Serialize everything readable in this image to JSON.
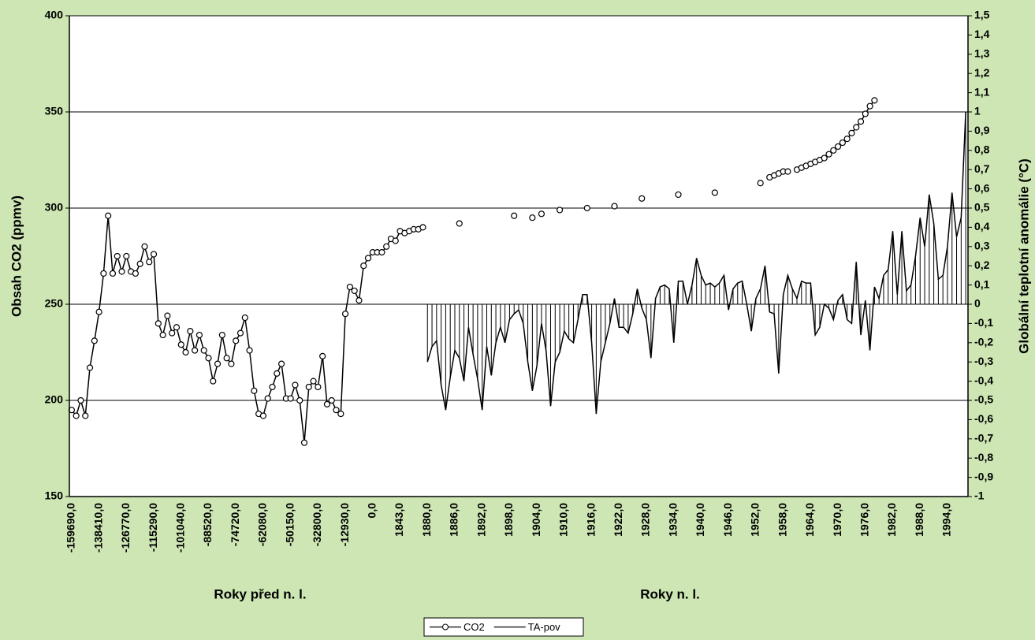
{
  "chart_data": {
    "type": "line",
    "categories": [
      "-159690,0",
      null,
      null,
      null,
      null,
      null,
      "-138410,0",
      null,
      null,
      null,
      null,
      null,
      "-126770,0",
      null,
      null,
      null,
      null,
      null,
      "-115290,0",
      null,
      null,
      null,
      null,
      null,
      "-101040,0",
      null,
      null,
      null,
      null,
      null,
      "-88520,0",
      null,
      null,
      null,
      null,
      null,
      "-74720,0",
      null,
      null,
      null,
      null,
      null,
      "-62080,0",
      null,
      null,
      null,
      null,
      null,
      "-50150,0",
      null,
      null,
      null,
      null,
      null,
      "-32800,0",
      null,
      null,
      null,
      null,
      null,
      "-12930,0",
      null,
      null,
      null,
      null,
      null,
      "0,0",
      null,
      null,
      null,
      null,
      null,
      "1843,0",
      null,
      null,
      null,
      null,
      null,
      "1880,0",
      null,
      null,
      null,
      null,
      null,
      "1886,0",
      null,
      null,
      null,
      null,
      null,
      "1892,0",
      null,
      null,
      null,
      null,
      null,
      "1898,0",
      null,
      null,
      null,
      null,
      null,
      "1904,0",
      null,
      null,
      null,
      null,
      null,
      "1910,0",
      null,
      null,
      null,
      null,
      null,
      "1916,0",
      null,
      null,
      null,
      null,
      null,
      "1922,0",
      null,
      null,
      null,
      null,
      null,
      "1928,0",
      null,
      null,
      null,
      null,
      null,
      "1934,0",
      null,
      null,
      null,
      null,
      null,
      "1940,0",
      null,
      null,
      null,
      null,
      null,
      "1946,0",
      null,
      null,
      null,
      null,
      null,
      "1952,0",
      null,
      null,
      null,
      null,
      null,
      "1958,0",
      null,
      null,
      null,
      null,
      null,
      "1964,0",
      null,
      null,
      null,
      null,
      null,
      "1970,0",
      null,
      null,
      null,
      null,
      null,
      "1976,0",
      null,
      null,
      null,
      null,
      null,
      "1982,0",
      null,
      null,
      null,
      null,
      null,
      "1988,0",
      null,
      null,
      null,
      null,
      null,
      "1994,0",
      null,
      null,
      null,
      null
    ],
    "series": [
      {
        "name": "CO2",
        "color": "#000000",
        "marker": "circle",
        "values": [
          195,
          192,
          200,
          192,
          217,
          231,
          246,
          266,
          296,
          266,
          275,
          267,
          275,
          267,
          266,
          271,
          280,
          272,
          276,
          240,
          234,
          244,
          235,
          238,
          229,
          225,
          236,
          226,
          234,
          226,
          222,
          210,
          219,
          234,
          222,
          219,
          231,
          235,
          243,
          226,
          205,
          193,
          192,
          201,
          207,
          214,
          219,
          201,
          201,
          208,
          200,
          178,
          207,
          210,
          207,
          223,
          198,
          200,
          195,
          193,
          245,
          259,
          257,
          252,
          270,
          274,
          277,
          277,
          277,
          280,
          284,
          283,
          288,
          287,
          288,
          289,
          289,
          290,
          null,
          null,
          null,
          null,
          null,
          null,
          null,
          292,
          null,
          null,
          null,
          null,
          null,
          null,
          null,
          null,
          null,
          null,
          null,
          296,
          null,
          null,
          null,
          295,
          null,
          297,
          null,
          null,
          null,
          299,
          null,
          null,
          null,
          null,
          null,
          300,
          null,
          null,
          null,
          null,
          null,
          301,
          null,
          null,
          null,
          null,
          null,
          305,
          null,
          null,
          null,
          null,
          null,
          null,
          null,
          307,
          null,
          null,
          null,
          null,
          null,
          null,
          null,
          308,
          null,
          null,
          null,
          null,
          null,
          null,
          null,
          null,
          null,
          313,
          null,
          316,
          317,
          318,
          319,
          319,
          null,
          320,
          321,
          322,
          323,
          324,
          325,
          326,
          328,
          330,
          332,
          334,
          336,
          339,
          342,
          345,
          349,
          353,
          356,
          null,
          null,
          null,
          null,
          null,
          null,
          null,
          null,
          null,
          null,
          null,
          null,
          null,
          null,
          null,
          null,
          null,
          null,
          null,
          null
        ]
      },
      {
        "name": "TA-pov",
        "color": "#000000",
        "axis": "y2",
        "drop_lines": true,
        "values": [
          null,
          null,
          null,
          null,
          null,
          null,
          null,
          null,
          null,
          null,
          null,
          null,
          null,
          null,
          null,
          null,
          null,
          null,
          null,
          null,
          null,
          null,
          null,
          null,
          null,
          null,
          null,
          null,
          null,
          null,
          null,
          null,
          null,
          null,
          null,
          null,
          null,
          null,
          null,
          null,
          null,
          null,
          null,
          null,
          null,
          null,
          null,
          null,
          null,
          null,
          null,
          null,
          null,
          null,
          null,
          null,
          null,
          null,
          null,
          null,
          null,
          null,
          null,
          null,
          null,
          null,
          null,
          null,
          null,
          null,
          null,
          null,
          null,
          null,
          null,
          null,
          null,
          null,
          -0.3,
          -0.22,
          -0.19,
          -0.42,
          -0.55,
          -0.38,
          -0.24,
          -0.28,
          -0.4,
          -0.12,
          -0.26,
          -0.39,
          -0.55,
          -0.22,
          -0.37,
          -0.2,
          -0.12,
          -0.2,
          -0.08,
          -0.05,
          -0.03,
          -0.1,
          -0.3,
          -0.45,
          -0.32,
          -0.1,
          -0.24,
          -0.53,
          -0.3,
          -0.25,
          -0.14,
          -0.18,
          -0.2,
          -0.08,
          0.05,
          0.05,
          -0.2,
          -0.57,
          -0.3,
          -0.2,
          -0.1,
          0.03,
          -0.12,
          -0.12,
          -0.15,
          -0.05,
          0.08,
          -0.02,
          -0.08,
          -0.28,
          0.03,
          0.09,
          0.1,
          0.08,
          -0.2,
          0.12,
          0.12,
          0.0,
          0.1,
          0.24,
          0.15,
          0.1,
          0.11,
          0.09,
          0.11,
          0.15,
          -0.03,
          0.08,
          0.11,
          0.12,
          0.0,
          -0.14,
          0.03,
          0.08,
          0.2,
          -0.04,
          -0.05,
          -0.36,
          0.05,
          0.15,
          0.08,
          0.03,
          0.12,
          0.11,
          0.11,
          -0.16,
          -0.12,
          0.0,
          -0.02,
          -0.08,
          0.02,
          0.05,
          -0.08,
          -0.1,
          0.22,
          -0.16,
          0.02,
          -0.24,
          0.09,
          0.03,
          0.15,
          0.18,
          0.38,
          0.05,
          0.38,
          0.07,
          0.1,
          0.25,
          0.45,
          0.3,
          0.57,
          0.42,
          0.13,
          0.15,
          0.3,
          0.58,
          0.35,
          0.45,
          1.0
        ]
      }
    ],
    "ylabel": "Obsah CO2 (ppmv)",
    "y2label": "Globální teplotní anomálie (°C)",
    "xlabels": [
      "Roky před n. l.",
      "Roky n. l."
    ],
    "ylim": [
      150,
      400
    ],
    "yticks": [
      150,
      200,
      250,
      300,
      350,
      400
    ],
    "y2lim": [
      -1,
      1.5
    ],
    "y2ticks": [
      -1,
      {
        "value": -0.9,
        "label": "-0,9"
      },
      {
        "value": -0.8,
        "label": "-0,8"
      },
      {
        "value": -0.7,
        "label": "-0,7"
      },
      {
        "value": -0.6,
        "label": "-0,6"
      },
      {
        "value": -0.5,
        "label": "-0,5"
      },
      {
        "value": -0.4,
        "label": "-0,4"
      },
      {
        "value": -0.3,
        "label": "-0,3"
      },
      {
        "value": -0.2,
        "label": "-0,2"
      },
      {
        "value": -0.1,
        "label": "-0,1"
      },
      0,
      {
        "value": 0.1,
        "label": "0,1"
      },
      {
        "value": 0.2,
        "label": "0,2"
      },
      {
        "value": 0.3,
        "label": "0,3"
      },
      {
        "value": 0.4,
        "label": "0,4"
      },
      {
        "value": 0.5,
        "label": "0,5"
      },
      {
        "value": 0.6,
        "label": "0,6"
      },
      {
        "value": 0.7,
        "label": "0,7"
      },
      {
        "value": 0.8,
        "label": "0,8"
      },
      {
        "value": 0.9,
        "label": "0,9"
      },
      1,
      {
        "value": 1.1,
        "label": "1,1"
      },
      {
        "value": 1.2,
        "label": "1,2"
      },
      {
        "value": 1.3,
        "label": "1,3"
      },
      {
        "value": 1.4,
        "label": "1,4"
      },
      {
        "value": 1.5,
        "label": "1,5"
      }
    ],
    "grid": true,
    "legend": "bottom"
  }
}
